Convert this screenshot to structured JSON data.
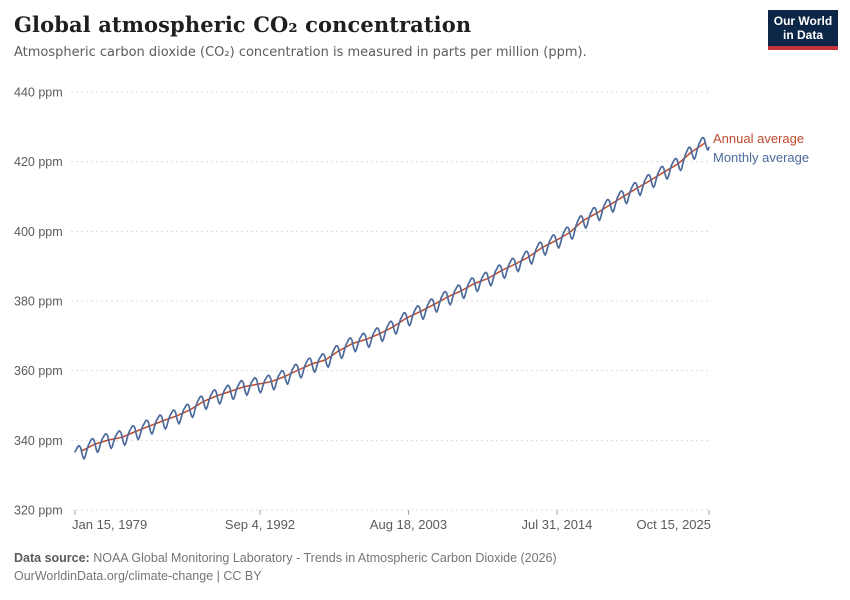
{
  "header": {
    "title": "Global atmospheric CO₂ concentration",
    "subtitle": "Atmospheric carbon dioxide (CO₂) concentration is measured in parts per million (ppm)."
  },
  "logo": {
    "line1": "Our World",
    "line2": "in Data",
    "bg_color": "#0c2647",
    "accent_color": "#c4353b"
  },
  "legend": [
    {
      "label": "Annual average",
      "color": "#bc4a2c"
    },
    {
      "label": "Monthly average",
      "color": "#4c6a9c"
    }
  ],
  "footer": {
    "source_label": "Data source:",
    "source_text": " NOAA Global Monitoring Laboratory - Trends in Atmospheric Carbon Dioxide (2026)",
    "license_line": "OurWorldinData.org/climate-change | CC BY"
  },
  "chart_data": {
    "type": "line",
    "title": "Global atmospheric CO₂ concentration",
    "xlabel": "",
    "ylabel": "ppm",
    "xlim": [
      1979.04,
      2025.79
    ],
    "ylim": [
      320,
      440
    ],
    "grid": "horizontal-dashed",
    "grid_color": "#dcdcdc",
    "axis_label_color": "#5b5b5b",
    "legend_position": "right-of-line-end",
    "y_ticks": [
      {
        "value": 440,
        "label": "440 ppm"
      },
      {
        "value": 420,
        "label": "420 ppm"
      },
      {
        "value": 400,
        "label": "400 ppm"
      },
      {
        "value": 380,
        "label": "380 ppm"
      },
      {
        "value": 360,
        "label": "360 ppm"
      },
      {
        "value": 340,
        "label": "340 ppm"
      },
      {
        "value": 320,
        "label": "320 ppm"
      }
    ],
    "x_ticks": [
      {
        "label": "Jan 15, 1979",
        "t": 1979.04,
        "anchor": "start"
      },
      {
        "label": "Sep 4, 1992",
        "t": 1992.68,
        "anchor": "middle"
      },
      {
        "label": "Aug 18, 2003",
        "t": 2003.63,
        "anchor": "middle"
      },
      {
        "label": "Jul 31, 2014",
        "t": 2014.58,
        "anchor": "middle"
      },
      {
        "label": "Oct 15, 2025",
        "t": 2025.79,
        "anchor": "end"
      }
    ],
    "series": [
      {
        "name": "Annual average",
        "color": "#bc4a2c",
        "kind": "annual",
        "years": [
          1979,
          1980,
          1981,
          1982,
          1983,
          1984,
          1985,
          1986,
          1987,
          1988,
          1989,
          1990,
          1991,
          1992,
          1993,
          1994,
          1995,
          1996,
          1997,
          1998,
          1999,
          2000,
          2001,
          2002,
          2003,
          2004,
          2005,
          2006,
          2007,
          2008,
          2009,
          2010,
          2011,
          2012,
          2013,
          2014,
          2015,
          2016,
          2017,
          2018,
          2019,
          2020,
          2021,
          2022,
          2023,
          2024,
          2025
        ],
        "values": [
          336.85,
          338.91,
          340.11,
          340.86,
          342.53,
          344.07,
          345.54,
          346.97,
          348.68,
          351.16,
          352.79,
          354.06,
          355.39,
          356.09,
          356.83,
          358.33,
          360.18,
          361.93,
          363.05,
          365.7,
          367.8,
          368.97,
          370.57,
          372.59,
          375.14,
          376.96,
          378.97,
          381.13,
          382.9,
          385.01,
          386.5,
          388.75,
          390.62,
          392.65,
          395.39,
          397.34,
          399.65,
          403.07,
          405.22,
          407.61,
          410.07,
          412.44,
          414.71,
          417.08,
          419.35,
          422.77,
          425.4
        ]
      },
      {
        "name": "Monthly average",
        "color": "#4c6a9c",
        "kind": "monthly",
        "derived_from": "annual trend plus seasonal cycle",
        "seasonal_offsets_ppm": [
          0.8,
          1.2,
          1.7,
          2.0,
          1.8,
          1.1,
          -0.5,
          -1.9,
          -2.6,
          -2.1,
          -1.0,
          0.0
        ],
        "start": "1979-01",
        "end": "2025-10"
      }
    ]
  }
}
